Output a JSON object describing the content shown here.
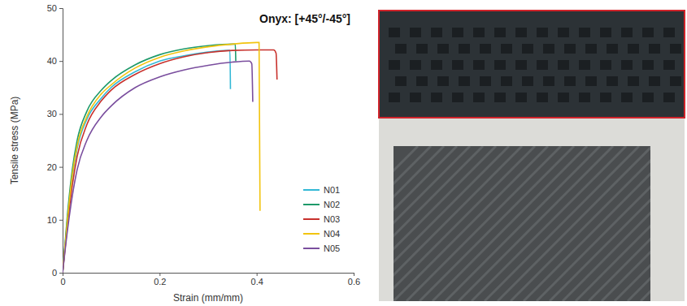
{
  "chart_data": {
    "type": "line",
    "title": "Onyx: [+45°/-45°]",
    "x_label": "Strain (mm/mm)",
    "y_label": "Tensile stress (MPa)",
    "xlim": [
      0,
      0.6
    ],
    "xticks": [
      0,
      0.2,
      0.4,
      0.6
    ],
    "ylim": [
      0,
      50
    ],
    "yticks": [
      0,
      10,
      20,
      30,
      40,
      50
    ],
    "grid": false,
    "legend": "lower right",
    "series": [
      {
        "name": "N01",
        "color": "#33b8d6",
        "x": [
          0,
          0.01,
          0.02,
          0.03,
          0.05,
          0.08,
          0.1,
          0.15,
          0.2,
          0.25,
          0.3,
          0.34,
          0.345,
          0.346
        ],
        "values": [
          0,
          10,
          18,
          23.5,
          29,
          33,
          35,
          38,
          40,
          41,
          41.7,
          42,
          42,
          34.7
        ]
      },
      {
        "name": "N02",
        "color": "#1e9a6a",
        "x": [
          0,
          0.01,
          0.02,
          0.03,
          0.05,
          0.08,
          0.1,
          0.15,
          0.2,
          0.25,
          0.3,
          0.35,
          0.356,
          0.357
        ],
        "values": [
          0,
          11,
          19.5,
          25,
          30.5,
          34.5,
          36.3,
          39.3,
          41.2,
          42.3,
          42.9,
          43.2,
          43.2,
          40
        ]
      },
      {
        "name": "N03",
        "color": "#c8312c",
        "x": [
          0,
          0.01,
          0.02,
          0.03,
          0.05,
          0.08,
          0.1,
          0.15,
          0.2,
          0.25,
          0.3,
          0.35,
          0.4,
          0.435,
          0.44,
          0.442
        ],
        "values": [
          0,
          9,
          16.5,
          22,
          28,
          32.5,
          34.5,
          37.5,
          39.5,
          40.8,
          41.6,
          42,
          42.1,
          42.1,
          41.5,
          36.5
        ]
      },
      {
        "name": "N04",
        "color": "#f2c40f",
        "x": [
          0,
          0.01,
          0.02,
          0.03,
          0.05,
          0.08,
          0.1,
          0.15,
          0.2,
          0.25,
          0.3,
          0.35,
          0.4,
          0.405,
          0.407
        ],
        "values": [
          0,
          10,
          18.5,
          24,
          29.5,
          33.8,
          35.5,
          38.7,
          40.7,
          41.9,
          42.7,
          43.2,
          43.5,
          43.5,
          11.7
        ]
      },
      {
        "name": "N05",
        "color": "#7a4e9e",
        "x": [
          0,
          0.01,
          0.02,
          0.03,
          0.05,
          0.08,
          0.1,
          0.15,
          0.2,
          0.25,
          0.3,
          0.35,
          0.385,
          0.39,
          0.392
        ],
        "values": [
          0,
          8,
          14.5,
          19.5,
          25,
          29.5,
          31.5,
          35,
          37,
          38.3,
          39.2,
          39.8,
          40,
          39.5,
          32.3
        ]
      }
    ]
  }
}
